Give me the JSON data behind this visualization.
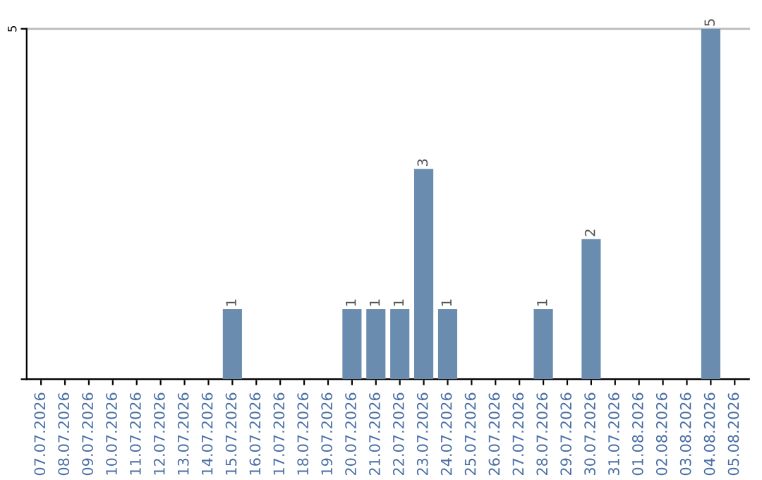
{
  "chart_data": {
    "type": "bar",
    "categories": [
      "07.07.2026",
      "08.07.2026",
      "09.07.2026",
      "10.07.2026",
      "11.07.2026",
      "12.07.2026",
      "13.07.2026",
      "14.07.2026",
      "15.07.2026",
      "16.07.2026",
      "17.07.2026",
      "18.07.2026",
      "19.07.2026",
      "20.07.2026",
      "21.07.2026",
      "22.07.2026",
      "23.07.2026",
      "24.07.2026",
      "25.07.2026",
      "26.07.2026",
      "27.07.2026",
      "28.07.2026",
      "29.07.2026",
      "30.07.2026",
      "31.07.2026",
      "01.08.2026",
      "02.08.2026",
      "03.08.2026",
      "04.08.2026",
      "05.08.2026"
    ],
    "values": [
      0,
      0,
      0,
      0,
      0,
      0,
      0,
      0,
      1,
      0,
      0,
      0,
      0,
      1,
      1,
      1,
      3,
      1,
      0,
      0,
      0,
      1,
      0,
      2,
      0,
      0,
      0,
      0,
      5,
      0
    ],
    "value_labels": [
      null,
      null,
      null,
      null,
      null,
      null,
      null,
      null,
      "1",
      null,
      null,
      null,
      null,
      "1",
      "1",
      "1",
      "3",
      "1",
      null,
      null,
      null,
      "1",
      null,
      "2",
      null,
      null,
      null,
      null,
      "5",
      null
    ],
    "color": "#6a8caf",
    "ylim": [
      0,
      5
    ],
    "yticks": [
      {
        "value": 0,
        "label": null
      },
      5
    ],
    "grid": "y"
  }
}
